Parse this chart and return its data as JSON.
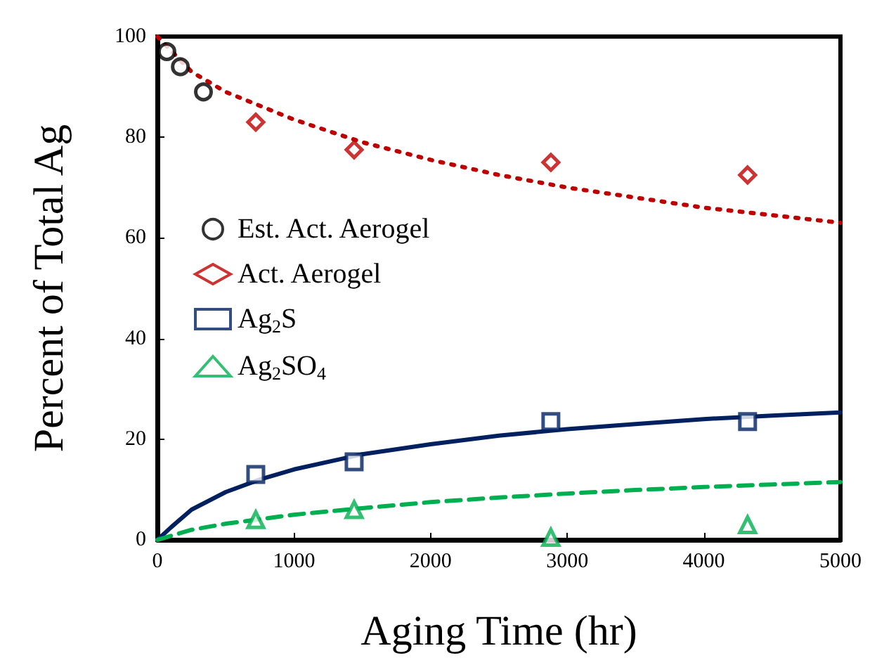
{
  "chart_data": {
    "type": "scatter",
    "xlabel": "Aging Time (hr)",
    "ylabel": "Percent of Total Ag",
    "xlim": [
      0,
      5000
    ],
    "ylim": [
      0,
      100
    ],
    "xticks": [
      0,
      1000,
      2000,
      3000,
      4000,
      5000
    ],
    "yticks": [
      0,
      20,
      40,
      60,
      80,
      100
    ],
    "grid": false,
    "legend": "left",
    "series": [
      {
        "name": "Est. Act. Aerogel",
        "color": "#000000",
        "marker": "circle",
        "x": [
          69,
          168,
          337
        ],
        "values": [
          97,
          94,
          89
        ]
      },
      {
        "name": "Act. Aerogel",
        "color": "#c00000",
        "marker": "diamond",
        "x": [
          720,
          1440,
          2880,
          4320
        ],
        "values": [
          83,
          77.5,
          75,
          72.5
        ]
      },
      {
        "name": "Ag$_{2}$S",
        "color": "#002060",
        "marker": "square",
        "x": [
          720,
          1440,
          2880,
          4320
        ],
        "values": [
          13,
          15.5,
          23.5,
          23.5
        ]
      },
      {
        "name": "Ag$_{2}$SO$_{4}$",
        "color": "#00b050",
        "marker": "triangle",
        "x": [
          720,
          1440,
          2880,
          4320
        ],
        "values": [
          4,
          6,
          0.5,
          3
        ]
      },
      {
        "type": "line",
        "color": "#c00000",
        "marker": "none",
        "line_style": "dotted",
        "x": [
          0,
          250,
          500,
          1000,
          1500,
          2000,
          2500,
          3000,
          3500,
          4000,
          4500,
          5000
        ],
        "values": [
          100,
          93,
          89,
          83.5,
          79,
          75.5,
          72.5,
          70,
          68,
          66,
          64.5,
          63
        ]
      },
      {
        "type": "line",
        "color": "#002060",
        "marker": "none",
        "line_style": "solid",
        "x": [
          0,
          100,
          250,
          500,
          750,
          1000,
          1500,
          2000,
          2500,
          3000,
          3500,
          4000,
          4500,
          5000
        ],
        "values": [
          0,
          2.5,
          6,
          9.5,
          12,
          14,
          17,
          19,
          20.7,
          22,
          23,
          24,
          24.7,
          25.3
        ]
      },
      {
        "type": "line",
        "color": "#00b050",
        "marker": "none",
        "line_style": "dashed",
        "x": [
          0,
          250,
          500,
          1000,
          1500,
          2000,
          2500,
          3000,
          3500,
          4000,
          4500,
          5000
        ],
        "values": [
          0,
          2,
          3.2,
          5,
          6.3,
          7.5,
          8.4,
          9.2,
          9.9,
          10.5,
          11,
          11.5
        ]
      }
    ]
  }
}
